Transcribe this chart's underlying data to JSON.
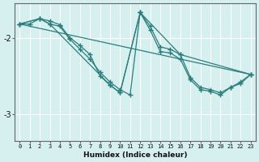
{
  "xlabel": "Humidex (Indice chaleur)",
  "background_color": "#d6efef",
  "grid_color": "#ffffff",
  "line_color": "#2d7d7d",
  "xlim": [
    -0.5,
    23.5
  ],
  "ylim": [
    -3.35,
    -1.55
  ],
  "yticks": [
    -3,
    -2
  ],
  "xticks": [
    0,
    1,
    2,
    3,
    4,
    5,
    6,
    7,
    8,
    9,
    10,
    11,
    12,
    13,
    14,
    15,
    16,
    17,
    18,
    19,
    20,
    21,
    22,
    23
  ],
  "series": [
    {
      "x": [
        0,
        1,
        2,
        3,
        4,
        5,
        6,
        7,
        8,
        9,
        10,
        12,
        13,
        14,
        15,
        16,
        17,
        18,
        19,
        20,
        21,
        22,
        23
      ],
      "y": [
        -1.82,
        -1.82,
        -1.75,
        -1.78,
        -1.83,
        -2.0,
        -2.1,
        -2.22,
        -2.5,
        -2.62,
        -2.72,
        -1.67,
        -1.85,
        -2.12,
        -2.15,
        -2.22,
        -2.52,
        -2.65,
        -2.68,
        -2.72,
        -2.65,
        -2.58,
        -2.48
      ]
    },
    {
      "x": [
        0,
        2,
        3,
        4,
        5,
        6,
        7,
        8,
        9,
        10,
        11,
        12,
        13,
        14,
        15,
        16,
        17,
        18,
        19,
        20,
        21,
        22,
        23
      ],
      "y": [
        -1.82,
        -1.75,
        -1.82,
        -1.85,
        -2.02,
        -2.15,
        -2.28,
        -2.45,
        -2.58,
        -2.68,
        -2.75,
        -1.67,
        -1.9,
        -2.18,
        -2.2,
        -2.28,
        -2.55,
        -2.68,
        -2.7,
        -2.75,
        -2.65,
        -2.6,
        -2.48
      ]
    },
    {
      "x": [
        0,
        2,
        3,
        9,
        10,
        12,
        16,
        23
      ],
      "y": [
        -1.82,
        -1.75,
        -1.82,
        -2.62,
        -2.72,
        -1.67,
        -2.22,
        -2.48
      ]
    },
    {
      "x": [
        0,
        23
      ],
      "y": [
        -1.82,
        -2.48
      ]
    }
  ]
}
